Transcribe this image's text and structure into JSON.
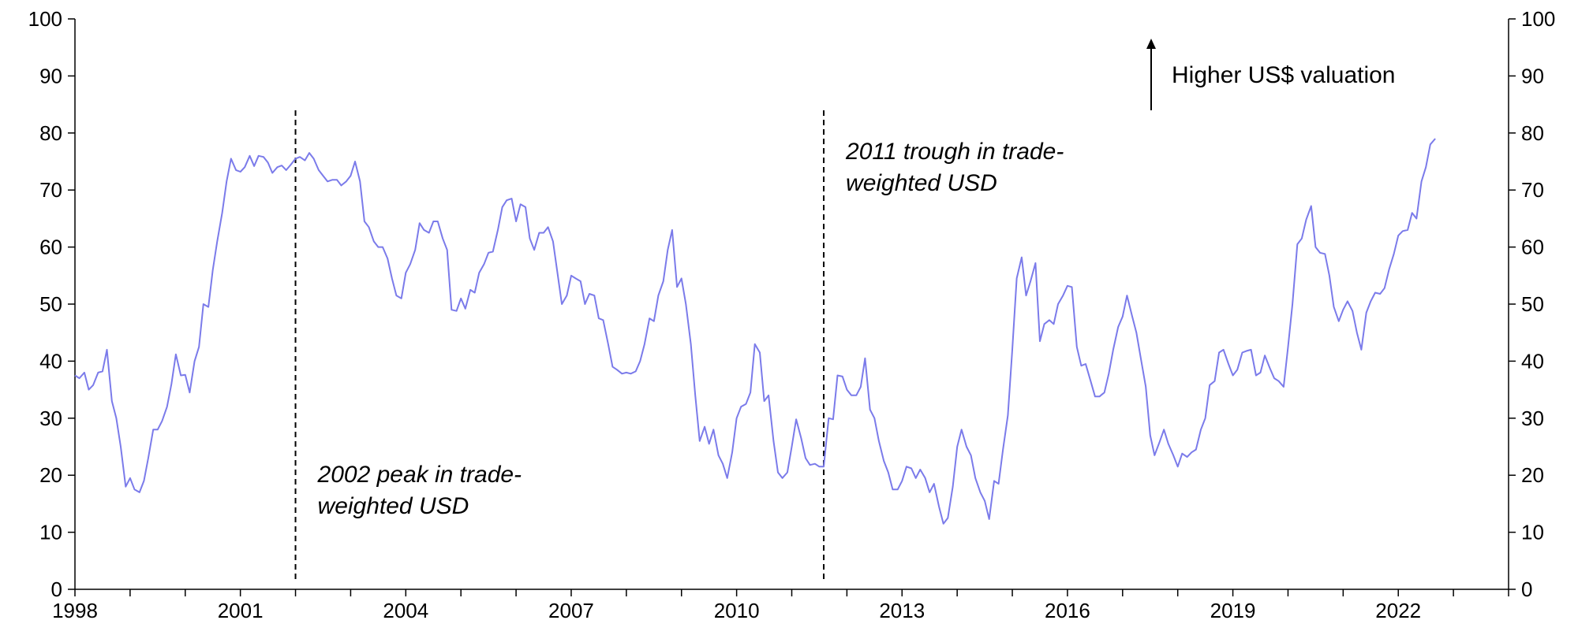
{
  "chart_data": {
    "type": "line",
    "title": "",
    "xlabel": "",
    "ylabel": "",
    "xlim": [
      1998.0,
      2024.0
    ],
    "ylim": [
      0,
      100
    ],
    "y_ticks": [
      0,
      10,
      20,
      30,
      40,
      50,
      60,
      70,
      80,
      90,
      100
    ],
    "x_ticks": [
      1998,
      2001,
      2004,
      2007,
      2010,
      2013,
      2016,
      2019,
      2022
    ],
    "x_tick_labels": [
      "1998",
      "2001",
      "2004",
      "2007",
      "2010",
      "2013",
      "2016",
      "2019",
      "2022"
    ],
    "grid": false,
    "dual_y_axis": true,
    "series": [
      {
        "color": "#7b7bea",
        "points": [
          [
            1998.0,
            37.5
          ],
          [
            1998.08,
            37.0
          ],
          [
            1998.17,
            38.0
          ],
          [
            1998.25,
            35.0
          ],
          [
            1998.33,
            35.8
          ],
          [
            1998.42,
            38.0
          ],
          [
            1998.5,
            38.2
          ],
          [
            1998.58,
            42.0
          ],
          [
            1998.67,
            33.0
          ],
          [
            1998.75,
            30.0
          ],
          [
            1998.83,
            25.0
          ],
          [
            1998.92,
            18.0
          ],
          [
            1999.0,
            19.5
          ],
          [
            1999.08,
            17.5
          ],
          [
            1999.17,
            17.0
          ],
          [
            1999.25,
            19.0
          ],
          [
            1999.33,
            23.0
          ],
          [
            1999.42,
            28.0
          ],
          [
            1999.5,
            28.0
          ],
          [
            1999.58,
            29.5
          ],
          [
            1999.67,
            32.0
          ],
          [
            1999.75,
            36.0
          ],
          [
            1999.83,
            41.2
          ],
          [
            1999.92,
            37.5
          ],
          [
            2000.0,
            37.6
          ],
          [
            2000.08,
            34.5
          ],
          [
            2000.17,
            40.0
          ],
          [
            2000.25,
            42.5
          ],
          [
            2000.33,
            50.0
          ],
          [
            2000.42,
            49.5
          ],
          [
            2000.5,
            56.0
          ],
          [
            2000.58,
            61.0
          ],
          [
            2000.67,
            66.0
          ],
          [
            2000.75,
            71.5
          ],
          [
            2000.83,
            75.5
          ],
          [
            2000.92,
            73.5
          ],
          [
            2001.0,
            73.2
          ],
          [
            2001.08,
            74.0
          ],
          [
            2001.17,
            76.0
          ],
          [
            2001.25,
            74.2
          ],
          [
            2001.33,
            76.0
          ],
          [
            2001.42,
            75.8
          ],
          [
            2001.5,
            74.8
          ],
          [
            2001.58,
            73.0
          ],
          [
            2001.67,
            74.0
          ],
          [
            2001.75,
            74.3
          ],
          [
            2001.83,
            73.5
          ],
          [
            2001.92,
            74.5
          ],
          [
            2002.0,
            75.5
          ],
          [
            2002.08,
            75.8
          ],
          [
            2002.17,
            75.2
          ],
          [
            2002.25,
            76.5
          ],
          [
            2002.33,
            75.5
          ],
          [
            2002.42,
            73.5
          ],
          [
            2002.5,
            72.5
          ],
          [
            2002.58,
            71.5
          ],
          [
            2002.67,
            71.8
          ],
          [
            2002.75,
            71.8
          ],
          [
            2002.83,
            70.8
          ],
          [
            2002.92,
            71.5
          ],
          [
            2003.0,
            72.5
          ],
          [
            2003.08,
            75.0
          ],
          [
            2003.17,
            71.5
          ],
          [
            2003.25,
            64.5
          ],
          [
            2003.33,
            63.5
          ],
          [
            2003.42,
            61.0
          ],
          [
            2003.5,
            60.0
          ],
          [
            2003.58,
            60.0
          ],
          [
            2003.67,
            58.0
          ],
          [
            2003.75,
            54.5
          ],
          [
            2003.83,
            51.5
          ],
          [
            2003.92,
            51.0
          ],
          [
            2004.0,
            55.5
          ],
          [
            2004.08,
            57.0
          ],
          [
            2004.17,
            59.5
          ],
          [
            2004.25,
            64.2
          ],
          [
            2004.33,
            63.0
          ],
          [
            2004.42,
            62.5
          ],
          [
            2004.5,
            64.5
          ],
          [
            2004.58,
            64.5
          ],
          [
            2004.67,
            61.5
          ],
          [
            2004.75,
            59.5
          ],
          [
            2004.83,
            49.0
          ],
          [
            2004.92,
            48.8
          ],
          [
            2005.0,
            51.0
          ],
          [
            2005.08,
            49.2
          ],
          [
            2005.17,
            52.5
          ],
          [
            2005.25,
            52.0
          ],
          [
            2005.33,
            55.5
          ],
          [
            2005.42,
            57.0
          ],
          [
            2005.5,
            59.0
          ],
          [
            2005.58,
            59.2
          ],
          [
            2005.67,
            63.0
          ],
          [
            2005.75,
            67.0
          ],
          [
            2005.83,
            68.2
          ],
          [
            2005.92,
            68.5
          ],
          [
            2006.0,
            64.5
          ],
          [
            2006.08,
            67.5
          ],
          [
            2006.17,
            67.0
          ],
          [
            2006.25,
            61.5
          ],
          [
            2006.33,
            59.5
          ],
          [
            2006.42,
            62.5
          ],
          [
            2006.5,
            62.5
          ],
          [
            2006.58,
            63.5
          ],
          [
            2006.67,
            61.0
          ],
          [
            2006.75,
            55.5
          ],
          [
            2006.83,
            50.0
          ],
          [
            2006.92,
            51.5
          ],
          [
            2007.0,
            55.0
          ],
          [
            2007.08,
            54.5
          ],
          [
            2007.17,
            54.0
          ],
          [
            2007.25,
            50.0
          ],
          [
            2007.33,
            51.8
          ],
          [
            2007.42,
            51.5
          ],
          [
            2007.5,
            47.5
          ],
          [
            2007.58,
            47.2
          ],
          [
            2007.67,
            43.0
          ],
          [
            2007.75,
            39.0
          ],
          [
            2007.83,
            38.5
          ],
          [
            2007.92,
            37.8
          ],
          [
            2008.0,
            38.0
          ],
          [
            2008.08,
            37.8
          ],
          [
            2008.17,
            38.2
          ],
          [
            2008.25,
            40.0
          ],
          [
            2008.33,
            43.0
          ],
          [
            2008.42,
            47.5
          ],
          [
            2008.5,
            47.0
          ],
          [
            2008.58,
            51.5
          ],
          [
            2008.67,
            54.0
          ],
          [
            2008.75,
            59.5
          ],
          [
            2008.83,
            63.0
          ],
          [
            2008.92,
            53.0
          ],
          [
            2009.0,
            54.5
          ],
          [
            2009.08,
            50.0
          ],
          [
            2009.17,
            43.0
          ],
          [
            2009.25,
            34.0
          ],
          [
            2009.33,
            26.0
          ],
          [
            2009.42,
            28.5
          ],
          [
            2009.5,
            25.5
          ],
          [
            2009.58,
            28.0
          ],
          [
            2009.67,
            23.5
          ],
          [
            2009.75,
            22.0
          ],
          [
            2009.83,
            19.5
          ],
          [
            2009.92,
            24.0
          ],
          [
            2010.0,
            30.0
          ],
          [
            2010.08,
            32.0
          ],
          [
            2010.17,
            32.5
          ],
          [
            2010.25,
            34.5
          ],
          [
            2010.33,
            43.0
          ],
          [
            2010.42,
            41.5
          ],
          [
            2010.5,
            33.0
          ],
          [
            2010.58,
            34.0
          ],
          [
            2010.67,
            26.0
          ],
          [
            2010.75,
            20.5
          ],
          [
            2010.83,
            19.5
          ],
          [
            2010.92,
            20.5
          ],
          [
            2011.0,
            25.0
          ],
          [
            2011.08,
            29.8
          ],
          [
            2011.17,
            26.5
          ],
          [
            2011.25,
            23.0
          ],
          [
            2011.33,
            21.8
          ],
          [
            2011.42,
            22.0
          ],
          [
            2011.5,
            21.5
          ],
          [
            2011.58,
            21.5
          ],
          [
            2011.67,
            30.0
          ],
          [
            2011.75,
            29.8
          ],
          [
            2011.83,
            37.5
          ],
          [
            2011.92,
            37.3
          ],
          [
            2012.0,
            35.0
          ],
          [
            2012.08,
            34.0
          ],
          [
            2012.17,
            34.0
          ],
          [
            2012.25,
            35.5
          ],
          [
            2012.33,
            40.5
          ],
          [
            2012.42,
            31.5
          ],
          [
            2012.5,
            30.0
          ],
          [
            2012.58,
            26.0
          ],
          [
            2012.67,
            22.5
          ],
          [
            2012.75,
            20.5
          ],
          [
            2012.83,
            17.5
          ],
          [
            2012.92,
            17.5
          ],
          [
            2013.0,
            19.0
          ],
          [
            2013.08,
            21.5
          ],
          [
            2013.17,
            21.2
          ],
          [
            2013.25,
            19.5
          ],
          [
            2013.33,
            21.0
          ],
          [
            2013.42,
            19.5
          ],
          [
            2013.5,
            17.0
          ],
          [
            2013.58,
            18.5
          ],
          [
            2013.67,
            14.5
          ],
          [
            2013.75,
            11.5
          ],
          [
            2013.83,
            12.5
          ],
          [
            2013.92,
            18.0
          ],
          [
            2014.0,
            25.0
          ],
          [
            2014.08,
            28.0
          ],
          [
            2014.17,
            25.0
          ],
          [
            2014.25,
            23.5
          ],
          [
            2014.33,
            19.5
          ],
          [
            2014.42,
            17.0
          ],
          [
            2014.5,
            15.5
          ],
          [
            2014.58,
            12.3
          ],
          [
            2014.67,
            19.0
          ],
          [
            2014.75,
            18.5
          ],
          [
            2014.83,
            24.5
          ],
          [
            2014.92,
            30.5
          ],
          [
            2015.0,
            42.0
          ],
          [
            2015.08,
            54.5
          ],
          [
            2015.17,
            58.2
          ],
          [
            2015.25,
            51.5
          ],
          [
            2015.33,
            54.0
          ],
          [
            2015.42,
            57.2
          ],
          [
            2015.5,
            43.5
          ],
          [
            2015.58,
            46.5
          ],
          [
            2015.67,
            47.2
          ],
          [
            2015.75,
            46.5
          ],
          [
            2015.83,
            50.0
          ],
          [
            2015.92,
            51.5
          ],
          [
            2016.0,
            53.2
          ],
          [
            2016.08,
            53.0
          ],
          [
            2016.17,
            42.5
          ],
          [
            2016.25,
            39.2
          ],
          [
            2016.33,
            39.5
          ],
          [
            2016.42,
            36.5
          ],
          [
            2016.5,
            33.8
          ],
          [
            2016.58,
            33.8
          ],
          [
            2016.67,
            34.5
          ],
          [
            2016.75,
            37.8
          ],
          [
            2016.83,
            42.0
          ],
          [
            2016.92,
            46.0
          ],
          [
            2017.0,
            47.8
          ],
          [
            2017.08,
            51.5
          ],
          [
            2017.17,
            48.0
          ],
          [
            2017.25,
            45.0
          ],
          [
            2017.33,
            40.5
          ],
          [
            2017.42,
            35.5
          ],
          [
            2017.5,
            27.0
          ],
          [
            2017.58,
            23.5
          ],
          [
            2017.67,
            25.8
          ],
          [
            2017.75,
            28.0
          ],
          [
            2017.83,
            25.5
          ],
          [
            2017.92,
            23.5
          ],
          [
            2018.0,
            21.5
          ],
          [
            2018.08,
            23.8
          ],
          [
            2018.17,
            23.2
          ],
          [
            2018.25,
            24.0
          ],
          [
            2018.33,
            24.5
          ],
          [
            2018.42,
            28.0
          ],
          [
            2018.5,
            30.0
          ],
          [
            2018.58,
            35.8
          ],
          [
            2018.67,
            36.5
          ],
          [
            2018.75,
            41.5
          ],
          [
            2018.83,
            42.0
          ],
          [
            2018.92,
            39.5
          ],
          [
            2019.0,
            37.5
          ],
          [
            2019.08,
            38.5
          ],
          [
            2019.17,
            41.5
          ],
          [
            2019.25,
            41.8
          ],
          [
            2019.33,
            42.0
          ],
          [
            2019.42,
            37.5
          ],
          [
            2019.5,
            38.0
          ],
          [
            2019.58,
            41.0
          ],
          [
            2019.67,
            38.8
          ],
          [
            2019.75,
            37.0
          ],
          [
            2019.83,
            36.5
          ],
          [
            2019.92,
            35.5
          ],
          [
            2020.0,
            42.5
          ],
          [
            2020.08,
            50.0
          ],
          [
            2020.17,
            60.5
          ],
          [
            2020.25,
            61.5
          ],
          [
            2020.33,
            64.8
          ],
          [
            2020.42,
            67.2
          ],
          [
            2020.5,
            60.0
          ],
          [
            2020.58,
            59.0
          ],
          [
            2020.67,
            58.8
          ],
          [
            2020.75,
            55.0
          ],
          [
            2020.83,
            49.5
          ],
          [
            2020.92,
            47.0
          ],
          [
            2021.0,
            49.0
          ],
          [
            2021.08,
            50.5
          ],
          [
            2021.17,
            48.8
          ],
          [
            2021.25,
            45.0
          ],
          [
            2021.33,
            42.0
          ],
          [
            2021.42,
            48.5
          ],
          [
            2021.5,
            50.5
          ],
          [
            2021.58,
            52.0
          ],
          [
            2021.67,
            51.8
          ],
          [
            2021.75,
            52.8
          ],
          [
            2021.83,
            56.0
          ],
          [
            2021.92,
            58.8
          ],
          [
            2022.0,
            62.0
          ],
          [
            2022.08,
            62.8
          ],
          [
            2022.17,
            63.0
          ],
          [
            2022.25,
            66.0
          ],
          [
            2022.33,
            65.0
          ],
          [
            2022.42,
            71.5
          ],
          [
            2022.5,
            74.0
          ],
          [
            2022.58,
            78.0
          ],
          [
            2022.67,
            79.0
          ]
        ]
      }
    ],
    "vertical_markers": [
      {
        "x": 2002.0,
        "style": "dashed",
        "label_lines": [
          "2002 peak in trade-",
          "weighted USD"
        ]
      },
      {
        "x": 2011.58,
        "style": "dashed",
        "label_lines": [
          "2011 trough in trade-",
          "weighted USD"
        ]
      }
    ],
    "arrow_annotation": {
      "label": "Higher US$ valuation",
      "direction": "up"
    }
  }
}
